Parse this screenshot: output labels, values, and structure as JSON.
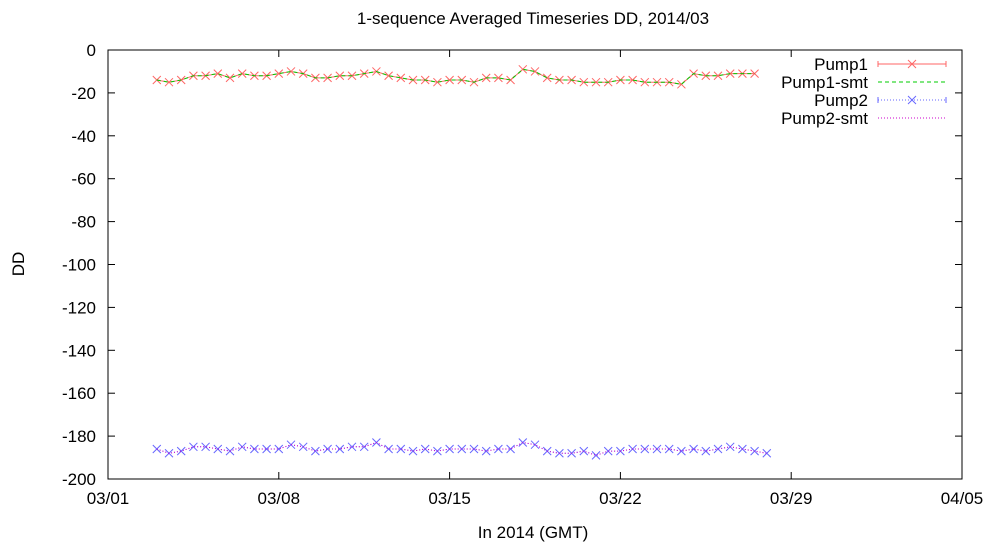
{
  "chart_data": {
    "type": "line",
    "title": "1-sequence Averaged Timeseries DD, 2014/03",
    "xlabel": "In 2014 (GMT)",
    "ylabel": "DD",
    "ylim": [
      -200,
      0
    ],
    "yticks": [
      "0",
      "-20",
      "-40",
      "-60",
      "-80",
      "-100",
      "-120",
      "-140",
      "-160",
      "-180",
      "-200"
    ],
    "xlim_days": [
      0,
      35
    ],
    "xticks": [
      {
        "label": "03/01",
        "day": 0
      },
      {
        "label": "03/08",
        "day": 7
      },
      {
        "label": "03/15",
        "day": 14
      },
      {
        "label": "03/22",
        "day": 21
      },
      {
        "label": "03/29",
        "day": 28
      },
      {
        "label": "04/05",
        "day": 35
      }
    ],
    "x_start_day": 2.0,
    "x_step_day": 0.5,
    "legend_position": "top-right",
    "series": [
      {
        "name": "Pump1",
        "color": "#ff6666",
        "style": "line+cross",
        "values": [
          -14,
          -15,
          -14,
          -12,
          -12,
          -11,
          -13,
          -11,
          -12,
          -12,
          -11,
          -10,
          -11,
          -13,
          -13,
          -12,
          -12,
          -11,
          -10,
          -12,
          -13,
          -14,
          -14,
          -15,
          -14,
          -14,
          -15,
          -13,
          -13,
          -14,
          -9,
          -10,
          -13,
          -14,
          -14,
          -15,
          -15,
          -15,
          -14,
          -14,
          -15,
          -15,
          -15,
          -16,
          -11,
          -12,
          -12,
          -11,
          -11,
          -11
        ]
      },
      {
        "name": "Pump1-smt",
        "color": "#00cc00",
        "style": "dashed",
        "values": [
          -14,
          -15,
          -14,
          -12,
          -12,
          -11,
          -13,
          -11,
          -12,
          -12,
          -11,
          -10,
          -11,
          -13,
          -13,
          -12,
          -12,
          -11,
          -10,
          -12,
          -13,
          -14,
          -14,
          -15,
          -14,
          -14,
          -15,
          -13,
          -13,
          -14,
          -9,
          -10,
          -13,
          -14,
          -14,
          -15,
          -15,
          -15,
          -14,
          -14,
          -15,
          -15,
          -15,
          -16,
          -11,
          -12,
          -12,
          -11,
          -11,
          -11
        ]
      },
      {
        "name": "Pump2",
        "color": "#6666ff",
        "style": "dotted+cross",
        "values": [
          -186,
          -188,
          -187,
          -185,
          -185,
          -186,
          -187,
          -185,
          -186,
          -186,
          -186,
          -184,
          -185,
          -187,
          -186,
          -186,
          -185,
          -185,
          -183,
          -186,
          -186,
          -187,
          -186,
          -187,
          -186,
          -186,
          -186,
          -187,
          -186,
          -186,
          -183,
          -184,
          -187,
          -188,
          -188,
          -187,
          -189,
          -187,
          -187,
          -186,
          -186,
          -186,
          -186,
          -187,
          -186,
          -187,
          -186,
          -185,
          -186,
          -187,
          -188
        ]
      },
      {
        "name": "Pump2-smt",
        "color": "#cc00cc",
        "style": "dotted",
        "values": [
          -186,
          -188,
          -187,
          -185,
          -185,
          -186,
          -187,
          -185,
          -186,
          -186,
          -186,
          -184,
          -185,
          -187,
          -186,
          -186,
          -185,
          -185,
          -183,
          -186,
          -186,
          -187,
          -186,
          -187,
          -186,
          -186,
          -186,
          -187,
          -186,
          -186,
          -183,
          -184,
          -187,
          -188,
          -188,
          -187,
          -189,
          -187,
          -187,
          -186,
          -186,
          -186,
          -186,
          -187,
          -186,
          -187,
          -186,
          -185,
          -186,
          -187,
          -188
        ]
      }
    ]
  }
}
